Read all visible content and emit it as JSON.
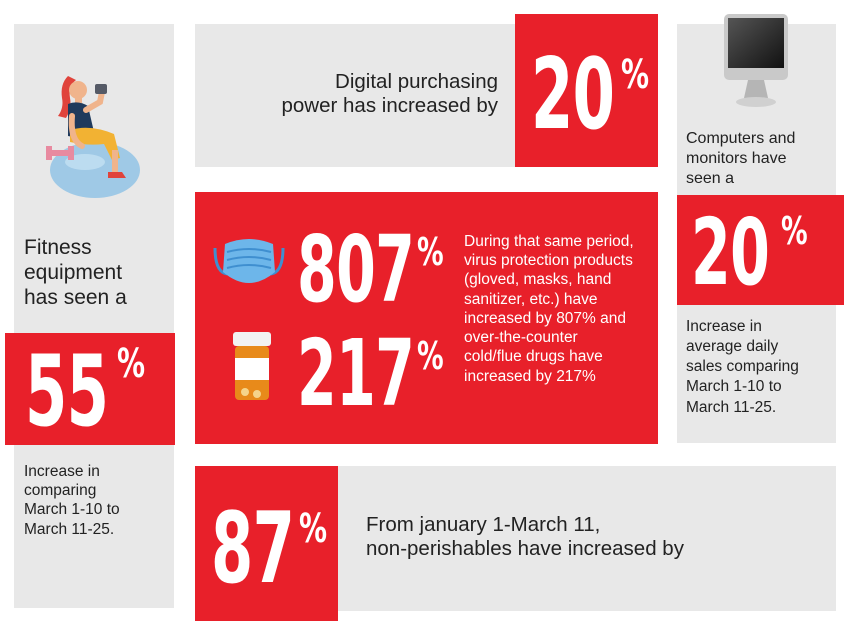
{
  "digital": {
    "text_line1": "Digital purchasing",
    "text_line2": "power has increased by",
    "value": "20",
    "unit": "%"
  },
  "fitness": {
    "text_line1": "Fitness",
    "text_line2": "equipment",
    "text_line3": "has seen a",
    "value": "55",
    "unit": "%",
    "desc_line1": "Increase in",
    "desc_line2": "comparing",
    "desc_line3": "March 1-10 to",
    "desc_line4": "March 11-25."
  },
  "protection": {
    "value1": "807",
    "unit1": "%",
    "value2": "217",
    "unit2": "%",
    "desc": [
      "During that same period,",
      "virus protection products",
      "(gloved, masks, hand",
      "sanitizer, etc.) have",
      "increased by 807% and",
      "over-the-counter",
      "cold/flue drugs have",
      "increased by 217%"
    ]
  },
  "computers": {
    "text_line1": "Computers and",
    "text_line2": "monitors have",
    "text_line3": "seen a",
    "value": "20",
    "unit": "%",
    "desc_line1": "Increase in",
    "desc_line2": "average daily",
    "desc_line3": "sales comparing",
    "desc_line4": "March 1-10 to",
    "desc_line5": "March 11-25."
  },
  "nonperish": {
    "value": "87",
    "unit": "%",
    "text_line1": "From january 1-March 11,",
    "text_line2": "non-perishables have increased by"
  },
  "icons": [
    "fitness-woman-icon",
    "computer-monitor-icon",
    "face-mask-icon",
    "pill-bottle-icon"
  ],
  "colors": {
    "accent": "#e8202a",
    "panel": "#e8e8e8",
    "text": "#222222"
  }
}
